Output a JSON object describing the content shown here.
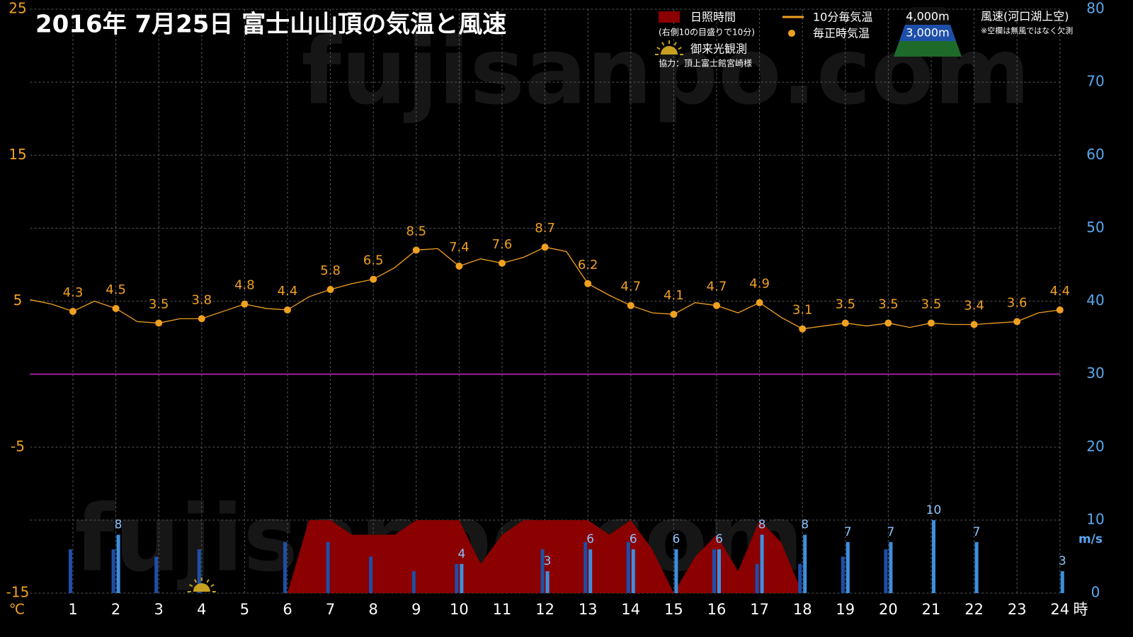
{
  "chart_data": {
    "type": "combo",
    "title": "2016年 7月25日 富士山山頂の気温と風速",
    "watermark": "fujisanpo.com",
    "x_unit": "時",
    "y_unit": "℃",
    "y2_unit": "m/s",
    "xlim": [
      0,
      24
    ],
    "xticks": [
      1,
      2,
      3,
      4,
      5,
      6,
      7,
      8,
      9,
      10,
      11,
      12,
      13,
      14,
      15,
      16,
      17,
      18,
      19,
      20,
      21,
      22,
      23,
      24
    ],
    "ylim": [
      -15,
      25
    ],
    "yticks": [
      -15,
      -5,
      5,
      15,
      25
    ],
    "y2lim": [
      0,
      80
    ],
    "y2ticks": [
      0,
      10,
      20,
      30,
      40,
      50,
      60,
      70,
      80
    ],
    "grid": true,
    "zero_line": {
      "value": 0,
      "color": "#a020a0"
    },
    "sunrise": {
      "label": "御来光観測",
      "x": 4,
      "color": "#c8a020"
    },
    "sunshine_note": "(右側10の目盛りで10分)",
    "credit": "協力：頂上富士館宮崎様",
    "wind_title": "風速(河口湖上空)",
    "wind_note": "※空欄は無風ではなく欠測",
    "series": [
      {
        "name": "日照時間",
        "kind": "area",
        "axis": "y2",
        "color": "#8b0000",
        "x": [
          6,
          6.5,
          7,
          7.5,
          8,
          8.5,
          9,
          9.5,
          10,
          10.5,
          11,
          11.5,
          12,
          12.5,
          13,
          13.5,
          14,
          14.5,
          15,
          15.5,
          16,
          16.5,
          17,
          17.5,
          18
        ],
        "values": [
          0,
          10,
          10,
          8,
          8,
          8,
          10,
          10,
          10,
          4,
          8,
          10,
          10,
          10,
          10,
          8,
          10,
          6,
          0,
          5,
          8,
          3,
          10,
          7,
          0
        ]
      },
      {
        "name": "10分毎気温",
        "kind": "line",
        "color": "#f0a020",
        "x": [
          0,
          0.5,
          1,
          1.5,
          2,
          2.5,
          3,
          3.5,
          4,
          4.5,
          5,
          5.5,
          6,
          6.5,
          7,
          7.5,
          8,
          8.5,
          9,
          9.5,
          10,
          10.5,
          11,
          11.5,
          12,
          12.5,
          13,
          13.5,
          14,
          14.5,
          15,
          15.5,
          16,
          16.5,
          17,
          17.5,
          18,
          18.5,
          19,
          19.5,
          20,
          20.5,
          21,
          21.5,
          22,
          22.5,
          23,
          23.5,
          24
        ],
        "values": [
          5.1,
          4.8,
          4.3,
          5.0,
          4.5,
          3.6,
          3.5,
          3.8,
          3.8,
          4.3,
          4.8,
          4.5,
          4.4,
          5.3,
          5.8,
          6.2,
          6.5,
          7.3,
          8.5,
          8.6,
          7.4,
          7.9,
          7.6,
          8.0,
          8.7,
          8.4,
          6.2,
          5.4,
          4.7,
          4.2,
          4.1,
          4.9,
          4.7,
          4.2,
          4.9,
          3.9,
          3.1,
          3.3,
          3.5,
          3.3,
          3.5,
          3.2,
          3.5,
          3.4,
          3.4,
          3.5,
          3.6,
          4.2,
          4.4
        ]
      },
      {
        "name": "毎正時気温",
        "kind": "scatter",
        "color": "#f0a020",
        "labels": true,
        "x": [
          1,
          2,
          3,
          4,
          5,
          6,
          7,
          8,
          9,
          10,
          11,
          12,
          13,
          14,
          15,
          16,
          17,
          18,
          19,
          20,
          21,
          22,
          23,
          24
        ],
        "values": [
          4.3,
          4.5,
          3.5,
          3.8,
          4.8,
          4.4,
          5.8,
          6.5,
          8.5,
          7.4,
          7.6,
          8.7,
          6.2,
          4.7,
          4.1,
          4.7,
          4.9,
          3.1,
          3.5,
          3.5,
          3.5,
          3.4,
          3.6,
          4.4
        ]
      },
      {
        "name": "4,000m",
        "kind": "bar",
        "axis": "y2",
        "color": "#1d4fa8",
        "offset": -1,
        "x": [
          1,
          2,
          3,
          4,
          5,
          6,
          7,
          8,
          9,
          10,
          11,
          12,
          13,
          14,
          15,
          16,
          17,
          18,
          19,
          20,
          21,
          22,
          23,
          24
        ],
        "values": [
          6,
          6,
          5,
          6,
          null,
          7,
          7,
          5,
          3,
          4,
          null,
          6,
          7,
          7,
          null,
          6,
          4,
          4,
          5,
          6,
          null,
          null,
          null,
          null
        ]
      },
      {
        "name": "3,000m",
        "kind": "bar",
        "axis": "y2",
        "color": "#3d8fe0",
        "offset": 1,
        "labels": true,
        "x": [
          1,
          2,
          3,
          4,
          5,
          6,
          7,
          8,
          9,
          10,
          11,
          12,
          13,
          14,
          15,
          16,
          17,
          18,
          19,
          20,
          21,
          22,
          23,
          24
        ],
        "values": [
          null,
          8,
          null,
          null,
          null,
          null,
          null,
          null,
          null,
          4,
          null,
          3,
          6,
          6,
          6,
          6,
          8,
          8,
          7,
          7,
          10,
          7,
          null,
          3
        ]
      }
    ]
  }
}
